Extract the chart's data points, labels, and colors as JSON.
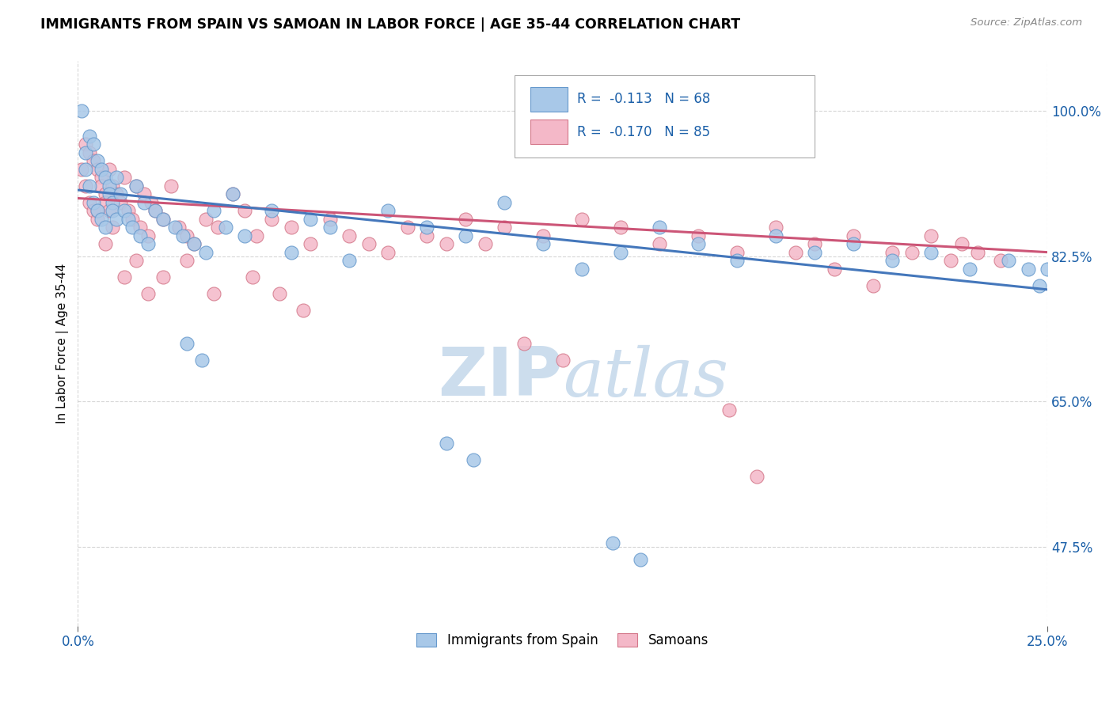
{
  "title": "IMMIGRANTS FROM SPAIN VS SAMOAN IN LABOR FORCE | AGE 35-44 CORRELATION CHART",
  "source": "Source: ZipAtlas.com",
  "ylabel": "In Labor Force | Age 35-44",
  "ytick_vals": [
    0.475,
    0.65,
    0.825,
    1.0
  ],
  "ytick_labels": [
    "47.5%",
    "65.0%",
    "82.5%",
    "100.0%"
  ],
  "xtick_vals": [
    0.0,
    0.25
  ],
  "xtick_labels": [
    "0.0%",
    "25.0%"
  ],
  "xlim": [
    0.0,
    0.25
  ],
  "ylim": [
    0.38,
    1.06
  ],
  "legend_r_spain": "-0.113",
  "legend_n_spain": "68",
  "legend_r_samoan": "-0.170",
  "legend_n_samoan": "85",
  "color_spain_fill": "#a8c8e8",
  "color_spain_edge": "#6699cc",
  "color_samoan_fill": "#f4b8c8",
  "color_samoan_edge": "#d4788a",
  "color_spain_line": "#4477bb",
  "color_samoan_line": "#cc5577",
  "color_text_blue": "#1a5fa8",
  "watermark_color": "#ccdded",
  "spain_x": [
    0.001,
    0.002,
    0.002,
    0.003,
    0.003,
    0.004,
    0.004,
    0.005,
    0.005,
    0.006,
    0.006,
    0.007,
    0.007,
    0.008,
    0.008,
    0.009,
    0.009,
    0.01,
    0.01,
    0.011,
    0.012,
    0.013,
    0.014,
    0.015,
    0.016,
    0.017,
    0.018,
    0.02,
    0.022,
    0.025,
    0.027,
    0.03,
    0.033,
    0.035,
    0.038,
    0.04,
    0.043,
    0.05,
    0.055,
    0.06,
    0.065,
    0.07,
    0.08,
    0.09,
    0.1,
    0.11,
    0.12,
    0.13,
    0.14,
    0.15,
    0.16,
    0.17,
    0.18,
    0.19,
    0.2,
    0.21,
    0.22,
    0.23,
    0.24,
    0.245,
    0.248,
    0.25,
    0.138,
    0.145,
    0.095,
    0.102,
    0.028,
    0.032
  ],
  "spain_y": [
    1.0,
    0.95,
    0.93,
    0.97,
    0.91,
    0.96,
    0.89,
    0.94,
    0.88,
    0.93,
    0.87,
    0.92,
    0.86,
    0.91,
    0.9,
    0.89,
    0.88,
    0.92,
    0.87,
    0.9,
    0.88,
    0.87,
    0.86,
    0.91,
    0.85,
    0.89,
    0.84,
    0.88,
    0.87,
    0.86,
    0.85,
    0.84,
    0.83,
    0.88,
    0.86,
    0.9,
    0.85,
    0.88,
    0.83,
    0.87,
    0.86,
    0.82,
    0.88,
    0.86,
    0.85,
    0.89,
    0.84,
    0.81,
    0.83,
    0.86,
    0.84,
    0.82,
    0.85,
    0.83,
    0.84,
    0.82,
    0.83,
    0.81,
    0.82,
    0.81,
    0.79,
    0.81,
    0.48,
    0.46,
    0.6,
    0.58,
    0.72,
    0.7
  ],
  "samoan_x": [
    0.001,
    0.002,
    0.002,
    0.003,
    0.003,
    0.004,
    0.004,
    0.005,
    0.005,
    0.006,
    0.006,
    0.007,
    0.007,
    0.008,
    0.008,
    0.009,
    0.01,
    0.011,
    0.012,
    0.013,
    0.014,
    0.015,
    0.016,
    0.017,
    0.018,
    0.019,
    0.02,
    0.022,
    0.024,
    0.026,
    0.028,
    0.03,
    0.033,
    0.036,
    0.04,
    0.043,
    0.046,
    0.05,
    0.055,
    0.06,
    0.065,
    0.07,
    0.075,
    0.08,
    0.085,
    0.09,
    0.095,
    0.1,
    0.105,
    0.11,
    0.12,
    0.13,
    0.14,
    0.15,
    0.16,
    0.17,
    0.18,
    0.19,
    0.2,
    0.21,
    0.22,
    0.228,
    0.232,
    0.238,
    0.115,
    0.125,
    0.045,
    0.052,
    0.058,
    0.035,
    0.028,
    0.022,
    0.018,
    0.015,
    0.012,
    0.009,
    0.007,
    0.005,
    0.168,
    0.175,
    0.185,
    0.195,
    0.205,
    0.215,
    0.225
  ],
  "samoan_y": [
    0.93,
    0.96,
    0.91,
    0.95,
    0.89,
    0.94,
    0.88,
    0.93,
    0.87,
    0.92,
    0.91,
    0.9,
    0.89,
    0.93,
    0.88,
    0.91,
    0.9,
    0.89,
    0.92,
    0.88,
    0.87,
    0.91,
    0.86,
    0.9,
    0.85,
    0.89,
    0.88,
    0.87,
    0.91,
    0.86,
    0.85,
    0.84,
    0.87,
    0.86,
    0.9,
    0.88,
    0.85,
    0.87,
    0.86,
    0.84,
    0.87,
    0.85,
    0.84,
    0.83,
    0.86,
    0.85,
    0.84,
    0.87,
    0.84,
    0.86,
    0.85,
    0.87,
    0.86,
    0.84,
    0.85,
    0.83,
    0.86,
    0.84,
    0.85,
    0.83,
    0.85,
    0.84,
    0.83,
    0.82,
    0.72,
    0.7,
    0.8,
    0.78,
    0.76,
    0.78,
    0.82,
    0.8,
    0.78,
    0.82,
    0.8,
    0.86,
    0.84,
    0.88,
    0.64,
    0.56,
    0.83,
    0.81,
    0.79,
    0.83,
    0.82
  ]
}
